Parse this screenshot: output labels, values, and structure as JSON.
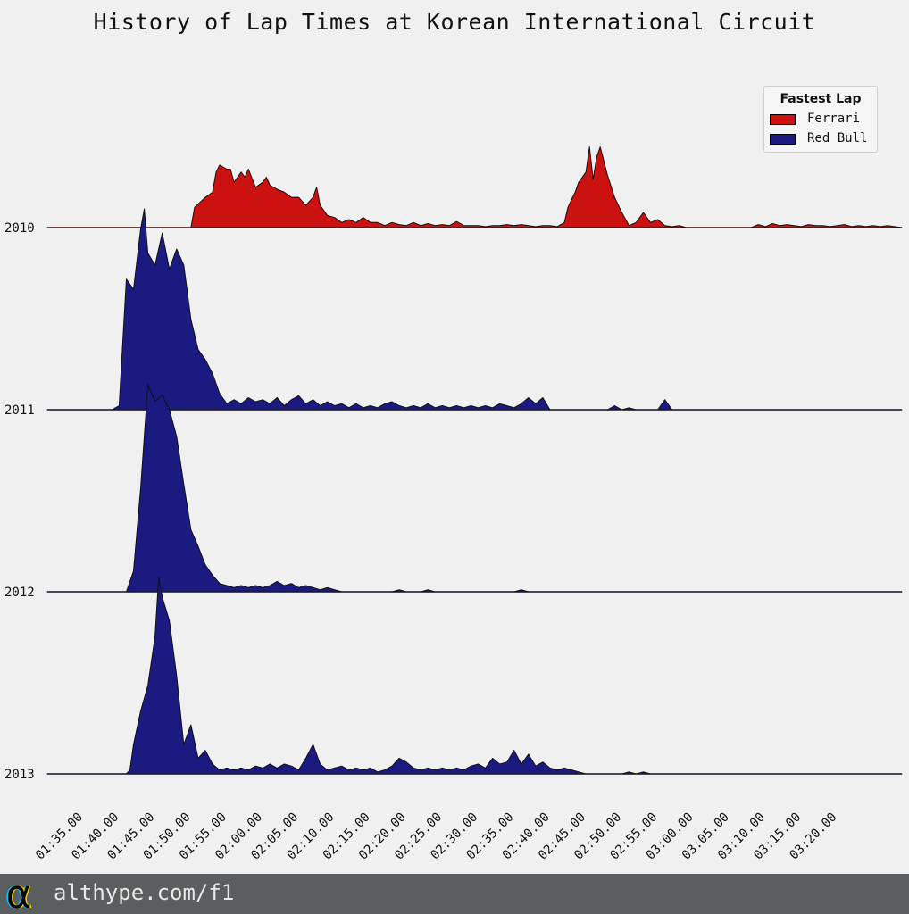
{
  "title": "History of Lap Times at Korean International Circuit",
  "footer": {
    "url": "althype.com/f1"
  },
  "chart_data": {
    "type": "area",
    "title": "History of Lap Times at Korean International Circuit",
    "xlabel": "",
    "ylabel": "",
    "grid": false,
    "legend": {
      "title": "Fastest Lap",
      "position": "top-right",
      "entries": [
        {
          "name": "Ferrari",
          "color": "#cc1111"
        },
        {
          "name": "Red Bull",
          "color": "#1a1a80"
        }
      ]
    },
    "x_ticks": [
      "01:35.00",
      "01:40.00",
      "01:45.00",
      "01:50.00",
      "01:55.00",
      "02:00.00",
      "02:05.00",
      "02:10.00",
      "02:15.00",
      "02:20.00",
      "02:25.00",
      "02:30.00",
      "02:35.00",
      "02:40.00",
      "02:45.00",
      "02:50.00",
      "02:55.00",
      "03:00.00",
      "03:05.00",
      "03:10.00",
      "03:15.00",
      "03:20.00"
    ],
    "x_range_seconds": [
      90,
      209
    ],
    "x_unit": "seconds",
    "series": [
      {
        "name": "2010",
        "team": "Ferrari",
        "color": "#cc1111",
        "points": [
          [
            90,
            0
          ],
          [
            110,
            0
          ],
          [
            110.5,
            0.2
          ],
          [
            112,
            0.3
          ],
          [
            113,
            0.35
          ],
          [
            113.5,
            0.55
          ],
          [
            114,
            0.62
          ],
          [
            115,
            0.58
          ],
          [
            115.5,
            0.58
          ],
          [
            116,
            0.45
          ],
          [
            117,
            0.55
          ],
          [
            117.5,
            0.5
          ],
          [
            118,
            0.58
          ],
          [
            119,
            0.4
          ],
          [
            120,
            0.45
          ],
          [
            120.5,
            0.5
          ],
          [
            121,
            0.42
          ],
          [
            122,
            0.38
          ],
          [
            123,
            0.35
          ],
          [
            124,
            0.3
          ],
          [
            125,
            0.3
          ],
          [
            126,
            0.22
          ],
          [
            127,
            0.3
          ],
          [
            127.5,
            0.4
          ],
          [
            128,
            0.22
          ],
          [
            129,
            0.12
          ],
          [
            130,
            0.1
          ],
          [
            131,
            0.05
          ],
          [
            132,
            0.08
          ],
          [
            133,
            0.05
          ],
          [
            134,
            0.1
          ],
          [
            135,
            0.05
          ],
          [
            136,
            0.05
          ],
          [
            137,
            0.02
          ],
          [
            138,
            0.05
          ],
          [
            139,
            0.03
          ],
          [
            140,
            0.02
          ],
          [
            141,
            0.05
          ],
          [
            142,
            0.02
          ],
          [
            143,
            0.04
          ],
          [
            144,
            0.02
          ],
          [
            145,
            0.03
          ],
          [
            146,
            0.02
          ],
          [
            147,
            0.06
          ],
          [
            148,
            0.02
          ],
          [
            149,
            0.02
          ],
          [
            150,
            0.02
          ],
          [
            151,
            0.01
          ],
          [
            152,
            0.02
          ],
          [
            153,
            0.02
          ],
          [
            154,
            0.03
          ],
          [
            155,
            0.02
          ],
          [
            156,
            0.03
          ],
          [
            157,
            0.02
          ],
          [
            158,
            0.01
          ],
          [
            159,
            0.02
          ],
          [
            160,
            0.02
          ],
          [
            161,
            0.01
          ],
          [
            162,
            0.05
          ],
          [
            162.5,
            0.2
          ],
          [
            163,
            0.28
          ],
          [
            163.5,
            0.35
          ],
          [
            164,
            0.45
          ],
          [
            165,
            0.55
          ],
          [
            165.5,
            0.8
          ],
          [
            166,
            0.48
          ],
          [
            166.5,
            0.7
          ],
          [
            167,
            0.8
          ],
          [
            168,
            0.52
          ],
          [
            169,
            0.3
          ],
          [
            170,
            0.15
          ],
          [
            171,
            0.02
          ],
          [
            172,
            0.05
          ],
          [
            173,
            0.15
          ],
          [
            174,
            0.05
          ],
          [
            175,
            0.08
          ],
          [
            176,
            0.02
          ],
          [
            177,
            0.01
          ],
          [
            178,
            0.02
          ],
          [
            179,
            0
          ],
          [
            188,
            0
          ],
          [
            189,
            0.03
          ],
          [
            190,
            0.01
          ],
          [
            191,
            0.04
          ],
          [
            192,
            0.02
          ],
          [
            193,
            0.03
          ],
          [
            194,
            0.02
          ],
          [
            195,
            0.01
          ],
          [
            196,
            0.03
          ],
          [
            197,
            0.02
          ],
          [
            198,
            0.02
          ],
          [
            199,
            0.01
          ],
          [
            200,
            0.02
          ],
          [
            201,
            0.03
          ],
          [
            202,
            0.01
          ],
          [
            203,
            0.02
          ],
          [
            204,
            0.01
          ],
          [
            205,
            0.02
          ],
          [
            206,
            0.01
          ],
          [
            207,
            0.02
          ],
          [
            208,
            0.01
          ],
          [
            209,
            0
          ]
        ]
      },
      {
        "name": "2011",
        "team": "Red Bull",
        "color": "#1a1a80",
        "points": [
          [
            90,
            0
          ],
          [
            99,
            0
          ],
          [
            100,
            0.02
          ],
          [
            101,
            0.65
          ],
          [
            102,
            0.6
          ],
          [
            103,
            0.9
          ],
          [
            103.5,
            1.0
          ],
          [
            104,
            0.78
          ],
          [
            105,
            0.72
          ],
          [
            106,
            0.88
          ],
          [
            107,
            0.7
          ],
          [
            108,
            0.8
          ],
          [
            109,
            0.72
          ],
          [
            110,
            0.45
          ],
          [
            111,
            0.3
          ],
          [
            112,
            0.25
          ],
          [
            113,
            0.18
          ],
          [
            114,
            0.08
          ],
          [
            115,
            0.03
          ],
          [
            116,
            0.05
          ],
          [
            117,
            0.03
          ],
          [
            118,
            0.06
          ],
          [
            119,
            0.04
          ],
          [
            120,
            0.05
          ],
          [
            121,
            0.03
          ],
          [
            122,
            0.06
          ],
          [
            123,
            0.02
          ],
          [
            124,
            0.05
          ],
          [
            125,
            0.07
          ],
          [
            126,
            0.03
          ],
          [
            127,
            0.05
          ],
          [
            128,
            0.02
          ],
          [
            129,
            0.04
          ],
          [
            130,
            0.02
          ],
          [
            131,
            0.03
          ],
          [
            132,
            0.01
          ],
          [
            133,
            0.03
          ],
          [
            134,
            0.01
          ],
          [
            135,
            0.02
          ],
          [
            136,
            0.01
          ],
          [
            137,
            0.03
          ],
          [
            138,
            0.04
          ],
          [
            139,
            0.02
          ],
          [
            140,
            0.01
          ],
          [
            141,
            0.02
          ],
          [
            142,
            0.01
          ],
          [
            143,
            0.03
          ],
          [
            144,
            0.01
          ],
          [
            145,
            0.02
          ],
          [
            146,
            0.01
          ],
          [
            147,
            0.02
          ],
          [
            148,
            0.01
          ],
          [
            149,
            0.02
          ],
          [
            150,
            0.01
          ],
          [
            151,
            0.02
          ],
          [
            152,
            0.01
          ],
          [
            153,
            0.03
          ],
          [
            154,
            0.02
          ],
          [
            155,
            0.01
          ],
          [
            156,
            0.03
          ],
          [
            157,
            0.06
          ],
          [
            158,
            0.03
          ],
          [
            159,
            0.06
          ],
          [
            160,
            0
          ],
          [
            168,
            0
          ],
          [
            169,
            0.02
          ],
          [
            170,
            0
          ],
          [
            171,
            0.01
          ],
          [
            172,
            0
          ],
          [
            175,
            0
          ],
          [
            176,
            0.05
          ],
          [
            177,
            0
          ],
          [
            209,
            0
          ]
        ]
      },
      {
        "name": "2012",
        "team": "Red Bull",
        "color": "#1a1a80",
        "points": [
          [
            90,
            0
          ],
          [
            101,
            0
          ],
          [
            102,
            0.1
          ],
          [
            103,
            0.5
          ],
          [
            104,
            1.0
          ],
          [
            105,
            0.92
          ],
          [
            106,
            0.95
          ],
          [
            107,
            0.88
          ],
          [
            108,
            0.75
          ],
          [
            109,
            0.52
          ],
          [
            110,
            0.3
          ],
          [
            111,
            0.22
          ],
          [
            112,
            0.13
          ],
          [
            113,
            0.08
          ],
          [
            114,
            0.04
          ],
          [
            115,
            0.03
          ],
          [
            116,
            0.02
          ],
          [
            117,
            0.03
          ],
          [
            118,
            0.02
          ],
          [
            119,
            0.03
          ],
          [
            120,
            0.02
          ],
          [
            121,
            0.03
          ],
          [
            122,
            0.05
          ],
          [
            123,
            0.03
          ],
          [
            124,
            0.04
          ],
          [
            125,
            0.02
          ],
          [
            126,
            0.03
          ],
          [
            127,
            0.02
          ],
          [
            128,
            0.01
          ],
          [
            129,
            0.02
          ],
          [
            130,
            0.01
          ],
          [
            131,
            0
          ],
          [
            138,
            0
          ],
          [
            139,
            0.01
          ],
          [
            140,
            0
          ],
          [
            142,
            0
          ],
          [
            143,
            0.01
          ],
          [
            144,
            0
          ],
          [
            155,
            0
          ],
          [
            156,
            0.01
          ],
          [
            157,
            0
          ],
          [
            209,
            0
          ]
        ]
      },
      {
        "name": "2013",
        "team": "Red Bull",
        "color": "#1a1a80",
        "points": [
          [
            90,
            0
          ],
          [
            101,
            0
          ],
          [
            101.5,
            0.02
          ],
          [
            102,
            0.15
          ],
          [
            103,
            0.32
          ],
          [
            104,
            0.45
          ],
          [
            105,
            0.7
          ],
          [
            105.5,
            1.0
          ],
          [
            106,
            0.9
          ],
          [
            107,
            0.78
          ],
          [
            108,
            0.5
          ],
          [
            109,
            0.15
          ],
          [
            110,
            0.25
          ],
          [
            111,
            0.08
          ],
          [
            112,
            0.12
          ],
          [
            113,
            0.05
          ],
          [
            114,
            0.02
          ],
          [
            115,
            0.03
          ],
          [
            116,
            0.02
          ],
          [
            117,
            0.03
          ],
          [
            118,
            0.02
          ],
          [
            119,
            0.04
          ],
          [
            120,
            0.03
          ],
          [
            121,
            0.05
          ],
          [
            122,
            0.03
          ],
          [
            123,
            0.05
          ],
          [
            124,
            0.04
          ],
          [
            125,
            0.02
          ],
          [
            126,
            0.08
          ],
          [
            127,
            0.15
          ],
          [
            128,
            0.05
          ],
          [
            129,
            0.02
          ],
          [
            130,
            0.03
          ],
          [
            131,
            0.04
          ],
          [
            132,
            0.02
          ],
          [
            133,
            0.03
          ],
          [
            134,
            0.02
          ],
          [
            135,
            0.03
          ],
          [
            136,
            0.01
          ],
          [
            137,
            0.02
          ],
          [
            138,
            0.04
          ],
          [
            139,
            0.08
          ],
          [
            140,
            0.06
          ],
          [
            141,
            0.03
          ],
          [
            142,
            0.02
          ],
          [
            143,
            0.03
          ],
          [
            144,
            0.02
          ],
          [
            145,
            0.03
          ],
          [
            146,
            0.02
          ],
          [
            147,
            0.03
          ],
          [
            148,
            0.02
          ],
          [
            149,
            0.04
          ],
          [
            150,
            0.05
          ],
          [
            151,
            0.03
          ],
          [
            152,
            0.08
          ],
          [
            153,
            0.05
          ],
          [
            154,
            0.06
          ],
          [
            155,
            0.12
          ],
          [
            156,
            0.05
          ],
          [
            157,
            0.1
          ],
          [
            158,
            0.04
          ],
          [
            159,
            0.06
          ],
          [
            160,
            0.03
          ],
          [
            161,
            0.02
          ],
          [
            162,
            0.03
          ],
          [
            163,
            0.02
          ],
          [
            164,
            0.01
          ],
          [
            165,
            0
          ],
          [
            170,
            0
          ],
          [
            171,
            0.01
          ],
          [
            172,
            0
          ],
          [
            173,
            0.01
          ],
          [
            174,
            0
          ],
          [
            209,
            0
          ]
        ]
      }
    ]
  }
}
